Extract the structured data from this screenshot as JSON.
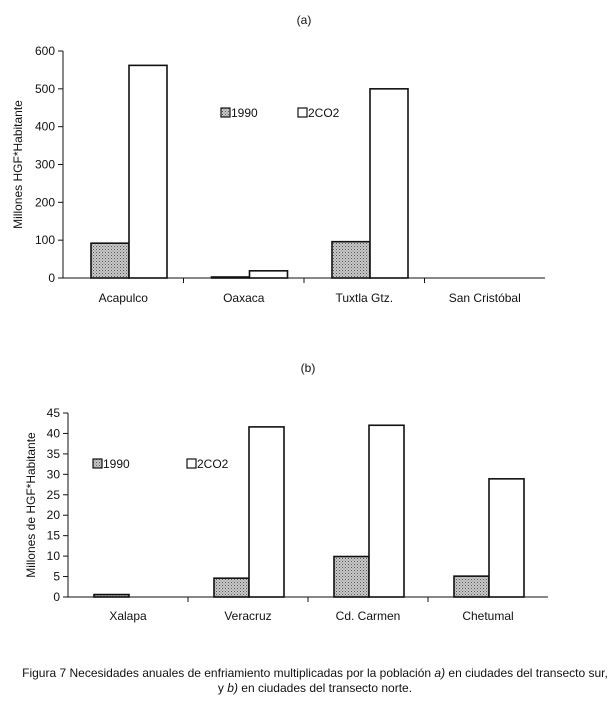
{
  "caption": {
    "prefix": "Figura 7 Necesidades anuales de enfriamiento multiplicadas por la población ",
    "a": "a)",
    "mid": " en ciudades del transecto sur, y ",
    "b": "b)",
    "suffix": " en ciudades del transecto norte."
  },
  "colors": {
    "series_1990": "#b8b8b8",
    "series_2co2": "#ffffff",
    "stroke": "#111111"
  },
  "chart_data": [
    {
      "type": "bar",
      "title": "(a)",
      "ylabel": "Millones HGF*Habitante",
      "xlabel": "",
      "ylim": [
        0,
        600
      ],
      "yticks": [
        0,
        100,
        200,
        300,
        400,
        500,
        600
      ],
      "categories": [
        "Acapulco",
        "Oaxaca",
        "Tuxtla Gtz.",
        "San Cristóbal"
      ],
      "series": [
        {
          "name": "1990",
          "values": [
            92,
            1,
            96,
            0
          ]
        },
        {
          "name": "2CO2",
          "values": [
            562,
            19,
            500,
            0
          ]
        }
      ],
      "legend": "inside-top-center",
      "grid": false
    },
    {
      "type": "bar",
      "title": "(b)",
      "ylabel": "Millones de HGF*Habitante",
      "xlabel": "",
      "ylim": [
        0,
        45
      ],
      "yticks": [
        0,
        5,
        10,
        15,
        20,
        25,
        30,
        35,
        40,
        45
      ],
      "categories": [
        "Xalapa",
        "Veracruz",
        "Cd. Carmen",
        "Chetumal"
      ],
      "series": [
        {
          "name": "1990",
          "values": [
            0.6,
            4.6,
            9.9,
            5.1
          ]
        },
        {
          "name": "2CO2",
          "values": [
            0,
            41.6,
            42.0,
            28.9
          ]
        }
      ],
      "legend": "inside-top-left",
      "grid": false
    }
  ]
}
